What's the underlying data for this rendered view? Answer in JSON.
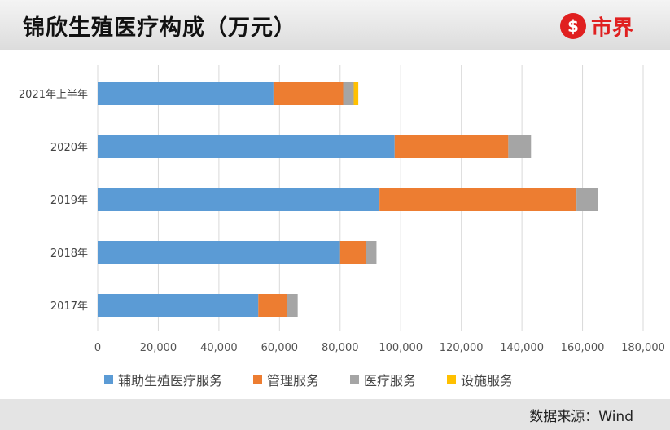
{
  "header": {
    "title": "锦欣生殖医疗构成（万元）",
    "logo_symbol": "$",
    "logo_text": "市界"
  },
  "footer": {
    "source": "数据来源：Wind"
  },
  "chart_data": {
    "type": "bar",
    "orientation": "horizontal",
    "stacked": true,
    "title": "锦欣生殖医疗构成（万元）",
    "categories": [
      "2021年上半年",
      "2020年",
      "2019年",
      "2018年",
      "2017年"
    ],
    "series": [
      {
        "name": "辅助生殖医疗服务",
        "color": "#5b9bd5",
        "values": [
          58000,
          98000,
          93000,
          80000,
          53000
        ]
      },
      {
        "name": "管理服务",
        "color": "#ed7d31",
        "values": [
          23000,
          37500,
          65000,
          8500,
          9500
        ]
      },
      {
        "name": "医疗服务",
        "color": "#a5a5a5",
        "values": [
          3500,
          7500,
          7000,
          3500,
          3500
        ]
      },
      {
        "name": "设施服务",
        "color": "#ffc000",
        "values": [
          1500,
          0,
          0,
          0,
          0
        ]
      }
    ],
    "xlim": [
      0,
      180000
    ],
    "xticks": [
      0,
      20000,
      40000,
      60000,
      80000,
      100000,
      120000,
      140000,
      160000,
      180000
    ],
    "xtick_labels": [
      "0",
      "20,000",
      "40,000",
      "60,000",
      "80,000",
      "100,000",
      "120,000",
      "140,000",
      "160,000",
      "180,000"
    ],
    "grid": true,
    "legend_position": "bottom"
  }
}
